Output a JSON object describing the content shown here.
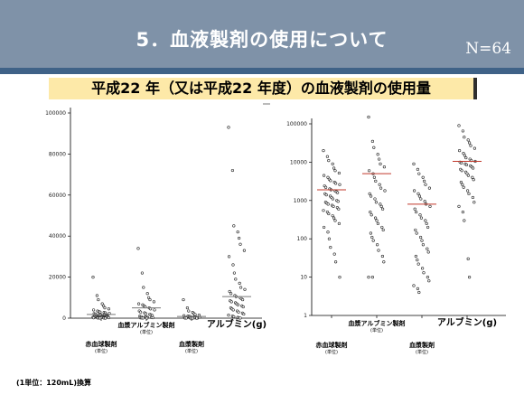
{
  "slide": {
    "title": "5．血液製剤の使用について",
    "n_label": "N=64",
    "subtitle": "平成22 年（又は平成22 年度）の血液製剤の使用量",
    "footnote": "(1単位：120mL)換算"
  },
  "chart_data": [
    {
      "type": "scatter",
      "title": "",
      "scale": "linear",
      "ylim": [
        0,
        100000
      ],
      "yticks": [
        "0",
        "20000",
        "40000",
        "60000",
        "80000",
        "100000"
      ],
      "grid": false,
      "categories": [
        {
          "name": "赤血球製剤",
          "unit": "(単位)",
          "row": "lower"
        },
        {
          "name": "血漿アルブミン製剤",
          "unit": "(単位)",
          "row": "upper"
        },
        {
          "name": "血漿製剤",
          "unit": "(単位)",
          "row": "lower"
        },
        {
          "name": "アルブミン(g)",
          "unit": "",
          "row": "upper"
        }
      ],
      "median_color": "#777777",
      "medians": [
        1800,
        5000,
        800,
        10500
      ],
      "series": [
        {
          "values": [
            20000,
            11000,
            9000,
            7000,
            6000,
            5000,
            4500,
            4000,
            3500,
            3200,
            3000,
            2800,
            2600,
            2400,
            2200,
            2000,
            1900,
            1800,
            1700,
            1600,
            1500,
            1400,
            1300,
            1200,
            1100,
            1000,
            950,
            900,
            850,
            800,
            750,
            700,
            650,
            600,
            550,
            500,
            450,
            400,
            350,
            300,
            250,
            200,
            150,
            100,
            80,
            50,
            30,
            10
          ]
        },
        {
          "values": [
            34000,
            22000,
            15000,
            12000,
            10000,
            9000,
            8000,
            7000,
            6500,
            6000,
            5500,
            5000,
            4500,
            4000,
            3500,
            3000,
            2600,
            2200,
            1900,
            1600,
            1300,
            1000,
            800,
            600,
            500,
            400,
            300,
            200,
            150,
            100,
            50,
            10
          ]
        },
        {
          "values": [
            9000,
            5000,
            3500,
            2800,
            2200,
            1800,
            1500,
            1200,
            1000,
            900,
            800,
            700,
            600,
            500,
            400,
            300,
            250,
            200,
            150,
            100,
            80,
            60,
            40,
            30,
            20,
            10,
            5
          ]
        },
        {
          "values": [
            93000,
            72000,
            45000,
            42000,
            39000,
            36000,
            33000,
            30000,
            26000,
            22000,
            19000,
            17000,
            15000,
            14000,
            13000,
            12000,
            11000,
            10500,
            10000,
            9500,
            9000,
            8500,
            8000,
            7500,
            7000,
            6500,
            6000,
            5500,
            5000,
            4500,
            4000,
            3500,
            3000,
            2500,
            2000,
            1500,
            1000,
            700,
            400,
            100,
            30
          ]
        }
      ]
    },
    {
      "type": "scatter",
      "title": "",
      "scale": "log",
      "ylim": [
        1,
        100000
      ],
      "yticks": [
        "1",
        "10",
        "100",
        "1000",
        "10000",
        "100000"
      ],
      "grid": false,
      "categories": [
        {
          "name": "赤血球製剤",
          "unit": "(単位)",
          "row": "lower"
        },
        {
          "name": "血漿アルブミン製剤",
          "unit": "(単位)",
          "row": "upper"
        },
        {
          "name": "血漿製剤",
          "unit": "(単位)",
          "row": "lower"
        },
        {
          "name": "アルブミン(g)",
          "unit": "",
          "row": "upper"
        }
      ],
      "median_color": "#c0392b",
      "medians": [
        1900,
        5000,
        800,
        10500
      ],
      "series": [
        {
          "values": [
            20000,
            14000,
            11000,
            9000,
            7000,
            6000,
            5200,
            4500,
            4000,
            3600,
            3300,
            3000,
            2800,
            2600,
            2400,
            2200,
            2000,
            1900,
            1800,
            1700,
            1600,
            1500,
            1400,
            1300,
            1200,
            1100,
            1000,
            950,
            900,
            850,
            800,
            750,
            700,
            650,
            600,
            550,
            500,
            450,
            400,
            350,
            300,
            250,
            200,
            150,
            100,
            60,
            40,
            25,
            10
          ]
        },
        {
          "values": [
            150000,
            35000,
            24000,
            16000,
            12000,
            9000,
            7500,
            6000,
            5000,
            4000,
            3200,
            2600,
            2100,
            1800,
            1500,
            1300,
            1100,
            900,
            800,
            700,
            600,
            500,
            420,
            350,
            300,
            250,
            200,
            170,
            140,
            110,
            90,
            70,
            50,
            35,
            25,
            10,
            10
          ]
        },
        {
          "values": [
            9000,
            6500,
            5000,
            4000,
            3200,
            2600,
            2100,
            1800,
            1500,
            1300,
            1100,
            950,
            800,
            700,
            600,
            500,
            420,
            350,
            300,
            250,
            200,
            170,
            140,
            110,
            90,
            70,
            55,
            45,
            35,
            28,
            22,
            17,
            13,
            10,
            8,
            6,
            5,
            4
          ]
        },
        {
          "values": [
            90000,
            65000,
            45000,
            38000,
            32000,
            27000,
            23000,
            20000,
            17000,
            15000,
            13000,
            12000,
            11000,
            10500,
            10000,
            9500,
            9000,
            8500,
            8000,
            7500,
            7000,
            6500,
            6000,
            5500,
            5000,
            4500,
            4000,
            3500,
            3000,
            2600,
            2200,
            1800,
            1500,
            1200,
            900,
            700,
            500,
            300,
            30,
            10
          ]
        }
      ]
    }
  ]
}
